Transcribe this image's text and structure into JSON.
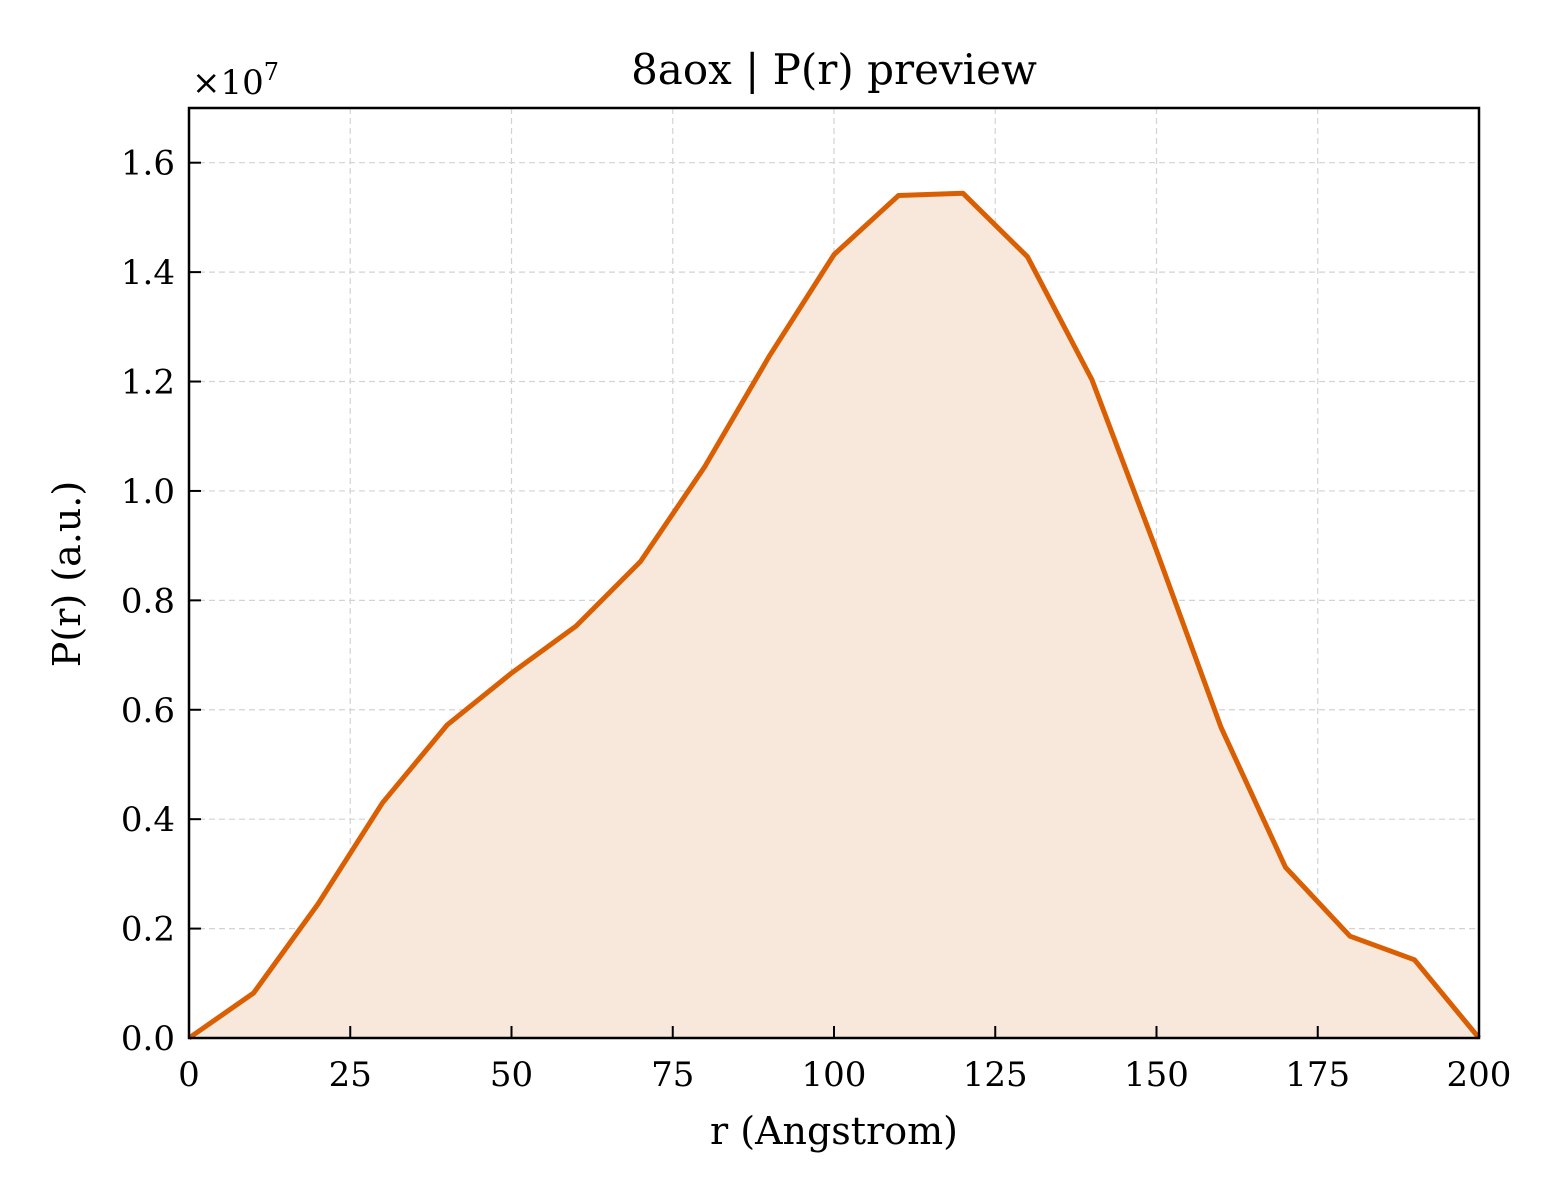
{
  "chart_data": {
    "type": "area",
    "title": "8aox | P(r) preview",
    "xlabel": "r (Angstrom)",
    "ylabel": "P(r) (a.u.)",
    "y_offset_label": "×10",
    "y_offset_exponent": "7",
    "xlim": [
      0,
      200
    ],
    "ylim": [
      0,
      1.7
    ],
    "xticks": [
      0,
      25,
      50,
      75,
      100,
      125,
      150,
      175,
      200
    ],
    "xtick_labels": [
      "0",
      "25",
      "50",
      "75",
      "100",
      "125",
      "150",
      "175",
      "200"
    ],
    "yticks": [
      0.0,
      0.2,
      0.4,
      0.6,
      0.8,
      1.0,
      1.2,
      1.4,
      1.6
    ],
    "ytick_labels": [
      "0.0",
      "0.2",
      "0.4",
      "0.6",
      "0.8",
      "1.0",
      "1.2",
      "1.4",
      "1.6"
    ],
    "grid": true,
    "series": [
      {
        "x": [
          0,
          10,
          20,
          30,
          40,
          50,
          60,
          70,
          80,
          90,
          100,
          110,
          120,
          130,
          140,
          150,
          160,
          170,
          180,
          190,
          200
        ],
        "y": [
          0.0,
          0.082,
          0.245,
          0.43,
          0.572,
          0.667,
          0.753,
          0.871,
          1.045,
          1.247,
          1.432,
          1.54,
          1.544,
          1.428,
          1.203,
          0.891,
          0.568,
          0.312,
          0.186,
          0.143,
          0.0
        ],
        "color": "#d95f02",
        "fill_color": "#f8e8dc"
      }
    ]
  }
}
